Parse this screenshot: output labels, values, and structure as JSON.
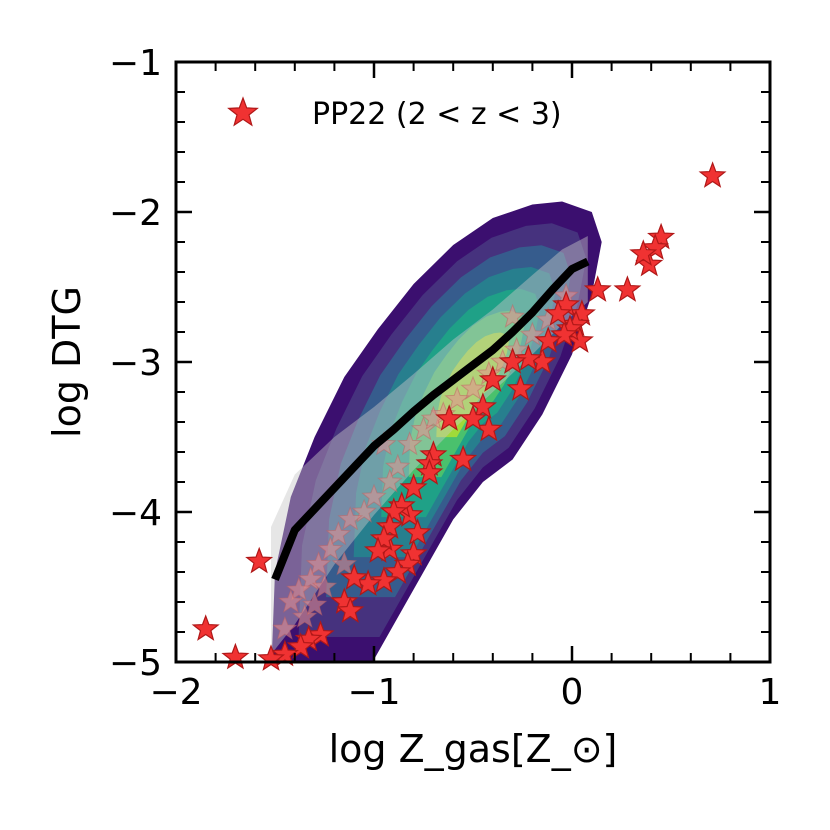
{
  "chart_data": {
    "type": "scatter",
    "xlabel": "log Z_gas[Z_⊙]",
    "ylabel": "log DTG",
    "xlim": [
      -2,
      1
    ],
    "ylim": [
      -5,
      -1
    ],
    "x_ticks": [
      -2,
      -1,
      0,
      1
    ],
    "x_tick_labels": [
      "−2",
      "−1",
      "0",
      "1"
    ],
    "y_ticks": [
      -5,
      -4,
      -3,
      -2,
      -1
    ],
    "y_tick_labels": [
      "−5",
      "−4",
      "−3",
      "−2",
      "−1"
    ],
    "grid": false,
    "legend_position": "top-left",
    "colors": {
      "stars": "#f03232",
      "star_edge": "#b01818",
      "median_line": "#000000",
      "band": "#c8c8c8",
      "contour_levels": [
        "#3b0f6f",
        "#46327e",
        "#365c8d",
        "#277f8e",
        "#1fa187",
        "#4ac16d",
        "#a0da39"
      ]
    },
    "series": [
      {
        "name": "PP22 (2 < z < 3)",
        "kind": "star-markers",
        "points": [
          [
            0.71,
            -1.76
          ],
          [
            0.45,
            -2.17
          ],
          [
            0.42,
            -2.24
          ],
          [
            0.39,
            -2.35
          ],
          [
            0.36,
            -2.28
          ],
          [
            0.28,
            -2.52
          ],
          [
            0.13,
            -2.52
          ],
          [
            0.05,
            -2.68
          ],
          [
            0.02,
            -2.75
          ],
          [
            0.04,
            -2.86
          ],
          [
            -0.01,
            -2.78
          ],
          [
            -0.04,
            -2.82
          ],
          [
            -0.03,
            -2.62
          ],
          [
            -0.07,
            -2.68
          ],
          [
            -0.15,
            -3.0
          ],
          [
            -0.12,
            -2.86
          ],
          [
            -0.26,
            -3.18
          ],
          [
            -0.22,
            -2.98
          ],
          [
            -0.3,
            -3.0
          ],
          [
            -0.4,
            -3.12
          ],
          [
            -0.42,
            -3.45
          ],
          [
            -0.45,
            -3.3
          ],
          [
            -0.55,
            -3.65
          ],
          [
            -0.5,
            -3.38
          ],
          [
            -0.62,
            -3.38
          ],
          [
            -0.7,
            -3.62
          ],
          [
            -0.72,
            -3.68
          ],
          [
            -0.72,
            -3.74
          ],
          [
            -0.8,
            -3.84
          ],
          [
            -0.82,
            -4.02
          ],
          [
            -0.86,
            -3.96
          ],
          [
            -0.9,
            -4.0
          ],
          [
            -0.92,
            -4.1
          ],
          [
            -0.92,
            -4.25
          ],
          [
            -0.95,
            -4.18
          ],
          [
            -0.98,
            -4.26
          ],
          [
            -0.78,
            -4.14
          ],
          [
            -0.8,
            -4.28
          ],
          [
            -0.83,
            -4.35
          ],
          [
            -0.88,
            -4.4
          ],
          [
            -0.95,
            -4.46
          ],
          [
            -1.03,
            -4.48
          ],
          [
            -1.1,
            -4.44
          ],
          [
            -1.15,
            -4.6
          ],
          [
            -1.12,
            -4.66
          ],
          [
            -1.58,
            -4.33
          ],
          [
            -1.27,
            -4.82
          ],
          [
            -1.33,
            -4.85
          ],
          [
            -1.37,
            -4.9
          ],
          [
            -1.45,
            -4.95
          ],
          [
            -1.52,
            -4.98
          ],
          [
            -1.85,
            -4.78
          ],
          [
            -1.7,
            -4.97
          ]
        ]
      },
      {
        "name": "",
        "kind": "faded-star-markers",
        "points": [
          [
            -0.03,
            -2.56
          ],
          [
            -0.12,
            -2.72
          ],
          [
            -0.2,
            -2.82
          ],
          [
            -0.28,
            -2.92
          ],
          [
            -0.35,
            -3.0
          ],
          [
            -0.42,
            -3.08
          ],
          [
            -0.5,
            -3.18
          ],
          [
            -0.58,
            -3.25
          ],
          [
            -0.65,
            -3.35
          ],
          [
            -0.75,
            -3.45
          ],
          [
            -0.82,
            -3.55
          ],
          [
            -0.95,
            -3.55
          ],
          [
            -0.88,
            -3.7
          ],
          [
            -0.92,
            -3.8
          ],
          [
            -1.0,
            -3.9
          ],
          [
            -1.05,
            -4.0
          ],
          [
            -1.12,
            -4.05
          ],
          [
            -1.18,
            -4.15
          ],
          [
            -1.22,
            -4.25
          ],
          [
            -1.28,
            -4.35
          ],
          [
            -1.32,
            -4.45
          ],
          [
            -1.38,
            -4.52
          ],
          [
            -1.42,
            -4.6
          ],
          [
            -1.25,
            -4.5
          ],
          [
            -1.15,
            -4.35
          ],
          [
            -1.35,
            -4.7
          ],
          [
            -1.45,
            -4.78
          ],
          [
            -1.3,
            -4.62
          ],
          [
            -0.7,
            -3.38
          ],
          [
            -0.3,
            -2.7
          ]
        ]
      },
      {
        "name": "",
        "kind": "median-line",
        "points": [
          [
            -1.5,
            -4.45
          ],
          [
            -1.4,
            -4.12
          ],
          [
            -1.3,
            -3.98
          ],
          [
            -1.2,
            -3.84
          ],
          [
            -1.1,
            -3.7
          ],
          [
            -1.0,
            -3.56
          ],
          [
            -0.9,
            -3.45
          ],
          [
            -0.8,
            -3.33
          ],
          [
            -0.7,
            -3.22
          ],
          [
            -0.6,
            -3.12
          ],
          [
            -0.5,
            -3.02
          ],
          [
            -0.4,
            -2.92
          ],
          [
            -0.3,
            -2.8
          ],
          [
            -0.2,
            -2.67
          ],
          [
            -0.1,
            -2.52
          ],
          [
            0.0,
            -2.38
          ],
          [
            0.08,
            -2.33
          ]
        ]
      }
    ]
  }
}
